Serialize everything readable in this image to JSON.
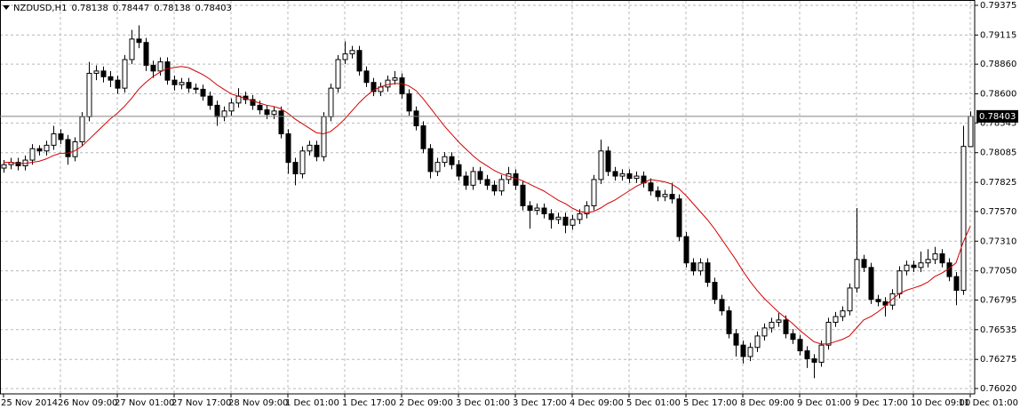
{
  "chart_data": {
    "type": "candlestick",
    "title": "NZDUSD,H1",
    "categories": [
      "25 Nov 2014",
      null,
      null,
      null,
      null,
      null,
      null,
      null,
      "26 Nov 09:00",
      null,
      null,
      null,
      null,
      null,
      null,
      null,
      "27 Nov 01:00",
      null,
      null,
      null,
      null,
      null,
      null,
      null,
      "27 Nov 17:00",
      null,
      null,
      null,
      null,
      null,
      null,
      null,
      "28 Nov 09:00",
      null,
      null,
      null,
      null,
      null,
      null,
      null,
      "1 Dec 01:00",
      null,
      null,
      null,
      null,
      null,
      null,
      null,
      "1 Dec 17:00",
      null,
      null,
      null,
      null,
      null,
      null,
      null,
      "2 Dec 09:00",
      null,
      null,
      null,
      null,
      null,
      null,
      null,
      "3 Dec 01:00",
      null,
      null,
      null,
      null,
      null,
      null,
      null,
      "3 Dec 17:00",
      null,
      null,
      null,
      null,
      null,
      null,
      null,
      "4 Dec 09:00",
      null,
      null,
      null,
      null,
      null,
      null,
      null,
      "5 Dec 01:00",
      null,
      null,
      null,
      null,
      null,
      null,
      null,
      "5 Dec 17:00",
      null,
      null,
      null,
      null,
      null,
      null,
      null,
      "8 Dec 09:00",
      null,
      null,
      null,
      null,
      null,
      null,
      null,
      "9 Dec 01:00",
      null,
      null,
      null,
      null,
      null,
      null,
      null,
      "9 Dec 17:00",
      null,
      null,
      null,
      null,
      null,
      null,
      null,
      "10 Dec 09:00",
      null,
      null,
      null,
      null,
      null,
      null,
      null,
      "11 Dec 01:00"
    ],
    "open": [
      0.7795,
      0.7798,
      0.78,
      0.7797,
      0.7802,
      0.7812,
      0.781,
      0.7815,
      0.7825,
      0.782,
      0.7805,
      0.7818,
      0.784,
      0.7878,
      0.788,
      0.7875,
      0.7872,
      0.7865,
      0.789,
      0.7908,
      0.7905,
      0.7885,
      0.788,
      0.7888,
      0.7872,
      0.7868,
      0.787,
      0.7865,
      0.7864,
      0.7858,
      0.785,
      0.784,
      0.7845,
      0.7852,
      0.7858,
      0.7855,
      0.785,
      0.7846,
      0.7842,
      0.7845,
      0.7825,
      0.78,
      0.779,
      0.781,
      0.7815,
      0.7805,
      0.784,
      0.7865,
      0.789,
      0.7895,
      0.7898,
      0.788,
      0.787,
      0.7862,
      0.7866,
      0.7872,
      0.7874,
      0.786,
      0.7845,
      0.7832,
      0.7812,
      0.7792,
      0.78,
      0.7805,
      0.7798,
      0.7788,
      0.778,
      0.7792,
      0.7785,
      0.778,
      0.7775,
      0.7785,
      0.779,
      0.778,
      0.7762,
      0.7758,
      0.776,
      0.7755,
      0.775,
      0.7752,
      0.7745,
      0.775,
      0.7755,
      0.7762,
      0.7785,
      0.781,
      0.7792,
      0.7788,
      0.779,
      0.7786,
      0.7788,
      0.7782,
      0.7775,
      0.777,
      0.7772,
      0.7768,
      0.7735,
      0.7712,
      0.7705,
      0.7712,
      0.7695,
      0.768,
      0.767,
      0.765,
      0.764,
      0.763,
      0.7638,
      0.7648,
      0.7655,
      0.766,
      0.7662,
      0.765,
      0.7645,
      0.7635,
      0.7628,
      0.7625,
      0.764,
      0.766,
      0.7665,
      0.767,
      0.769,
      0.7715,
      0.7708,
      0.768,
      0.7678,
      0.7675,
      0.7685,
      0.7705,
      0.771,
      0.7708,
      0.7712,
      0.7715,
      0.772,
      0.7712,
      0.77,
      0.7688,
      0.78138
    ],
    "high": [
      0.7802,
      0.7804,
      0.7804,
      0.7806,
      0.7816,
      0.7815,
      0.7819,
      0.7832,
      0.7829,
      0.7824,
      0.7822,
      0.7844,
      0.7888,
      0.7885,
      0.7884,
      0.788,
      0.7876,
      0.7894,
      0.7916,
      0.792,
      0.7909,
      0.7889,
      0.7892,
      0.7892,
      0.7876,
      0.7874,
      0.7874,
      0.7869,
      0.7868,
      0.7862,
      0.7854,
      0.7849,
      0.7856,
      0.7865,
      0.7862,
      0.7859,
      0.7854,
      0.785,
      0.7849,
      0.7849,
      0.7829,
      0.7804,
      0.7814,
      0.7819,
      0.7819,
      0.7844,
      0.7869,
      0.7894,
      0.7906,
      0.7902,
      0.7902,
      0.7884,
      0.7874,
      0.787,
      0.7876,
      0.788,
      0.7878,
      0.7864,
      0.7849,
      0.7836,
      0.7816,
      0.7804,
      0.7809,
      0.7809,
      0.7802,
      0.7792,
      0.7796,
      0.7796,
      0.7789,
      0.7784,
      0.7789,
      0.7796,
      0.7794,
      0.7784,
      0.7766,
      0.7764,
      0.7764,
      0.7759,
      0.7756,
      0.7756,
      0.7754,
      0.7759,
      0.7766,
      0.7789,
      0.782,
      0.7814,
      0.7796,
      0.7794,
      0.7794,
      0.7792,
      0.7792,
      0.7786,
      0.7779,
      0.7776,
      0.7782,
      0.7772,
      0.7739,
      0.7716,
      0.7716,
      0.7716,
      0.7699,
      0.7684,
      0.7674,
      0.7654,
      0.7644,
      0.7642,
      0.7652,
      0.7659,
      0.7664,
      0.7668,
      0.7666,
      0.7654,
      0.7649,
      0.7639,
      0.7632,
      0.7644,
      0.7664,
      0.7669,
      0.7674,
      0.7694,
      0.776,
      0.7719,
      0.7712,
      0.7684,
      0.7682,
      0.7689,
      0.7709,
      0.7714,
      0.7714,
      0.7722,
      0.7724,
      0.7726,
      0.7724,
      0.7716,
      0.7704,
      0.7832,
      0.78447
    ],
    "low": [
      0.7791,
      0.7794,
      0.7793,
      0.7793,
      0.7798,
      0.7806,
      0.7806,
      0.7811,
      0.7816,
      0.7798,
      0.7801,
      0.7814,
      0.7836,
      0.7872,
      0.787,
      0.7866,
      0.786,
      0.7861,
      0.7886,
      0.79,
      0.788,
      0.7874,
      0.7876,
      0.7868,
      0.7863,
      0.7864,
      0.7861,
      0.786,
      0.7854,
      0.7846,
      0.7832,
      0.7836,
      0.7841,
      0.7848,
      0.7851,
      0.7846,
      0.7842,
      0.7838,
      0.7838,
      0.7821,
      0.779,
      0.778,
      0.7786,
      0.7806,
      0.7801,
      0.7801,
      0.7836,
      0.7861,
      0.7886,
      0.7891,
      0.7876,
      0.7866,
      0.7858,
      0.7858,
      0.7862,
      0.7868,
      0.7856,
      0.7841,
      0.7828,
      0.7808,
      0.7786,
      0.7788,
      0.7796,
      0.7794,
      0.7784,
      0.7776,
      0.7776,
      0.7781,
      0.7776,
      0.7771,
      0.7771,
      0.7781,
      0.7776,
      0.7758,
      0.7742,
      0.7754,
      0.7751,
      0.7742,
      0.7746,
      0.7738,
      0.7741,
      0.7746,
      0.7751,
      0.7758,
      0.7781,
      0.7788,
      0.7784,
      0.7784,
      0.7782,
      0.7782,
      0.7778,
      0.7771,
      0.7766,
      0.7766,
      0.7764,
      0.7731,
      0.7708,
      0.7701,
      0.7701,
      0.7691,
      0.7676,
      0.7666,
      0.7646,
      0.763,
      0.7624,
      0.7626,
      0.7634,
      0.7644,
      0.7651,
      0.7656,
      0.7646,
      0.7641,
      0.7631,
      0.762,
      0.7611,
      0.7621,
      0.7636,
      0.7656,
      0.7661,
      0.7666,
      0.7686,
      0.7704,
      0.7676,
      0.7674,
      0.7665,
      0.7671,
      0.7681,
      0.7701,
      0.7704,
      0.7704,
      0.7708,
      0.7711,
      0.7708,
      0.7696,
      0.7675,
      0.7684,
      0.78138
    ],
    "close": [
      0.7798,
      0.78,
      0.7797,
      0.7802,
      0.7812,
      0.781,
      0.7815,
      0.7825,
      0.782,
      0.7805,
      0.7818,
      0.784,
      0.7878,
      0.788,
      0.7875,
      0.7872,
      0.7865,
      0.789,
      0.7908,
      0.7905,
      0.7885,
      0.788,
      0.7888,
      0.7872,
      0.7868,
      0.787,
      0.7865,
      0.7864,
      0.7858,
      0.785,
      0.784,
      0.7845,
      0.7852,
      0.7858,
      0.7855,
      0.785,
      0.7846,
      0.7842,
      0.7845,
      0.7825,
      0.78,
      0.779,
      0.781,
      0.7815,
      0.7805,
      0.784,
      0.7865,
      0.789,
      0.7895,
      0.7898,
      0.788,
      0.787,
      0.7862,
      0.7866,
      0.7872,
      0.7874,
      0.786,
      0.7845,
      0.7832,
      0.7812,
      0.7792,
      0.78,
      0.7805,
      0.7798,
      0.7788,
      0.778,
      0.7792,
      0.7785,
      0.778,
      0.7775,
      0.7785,
      0.779,
      0.778,
      0.7762,
      0.7758,
      0.776,
      0.7755,
      0.775,
      0.7752,
      0.7745,
      0.775,
      0.7755,
      0.7762,
      0.7785,
      0.781,
      0.7792,
      0.7788,
      0.779,
      0.7786,
      0.7788,
      0.7782,
      0.7775,
      0.777,
      0.7772,
      0.7768,
      0.7735,
      0.7712,
      0.7705,
      0.7712,
      0.7695,
      0.768,
      0.767,
      0.765,
      0.764,
      0.763,
      0.7638,
      0.7648,
      0.7655,
      0.766,
      0.7662,
      0.765,
      0.7645,
      0.7635,
      0.7628,
      0.7625,
      0.764,
      0.766,
      0.7665,
      0.767,
      0.769,
      0.7715,
      0.7708,
      0.768,
      0.7678,
      0.7675,
      0.7685,
      0.7705,
      0.771,
      0.7708,
      0.7712,
      0.7715,
      0.772,
      0.7712,
      0.77,
      0.7688,
      0.7814,
      0.78403
    ],
    "overlay": {
      "color": "#d40000",
      "values": [
        0.78,
        0.78,
        0.7799,
        0.7799,
        0.78,
        0.7801,
        0.7803,
        0.7806,
        0.7808,
        0.7808,
        0.781,
        0.7814,
        0.782,
        0.7826,
        0.7832,
        0.7838,
        0.7843,
        0.7849,
        0.7856,
        0.7864,
        0.787,
        0.7875,
        0.7879,
        0.7882,
        0.7883,
        0.7884,
        0.7883,
        0.788,
        0.7877,
        0.7873,
        0.7868,
        0.7864,
        0.786,
        0.7858,
        0.7856,
        0.7854,
        0.7852,
        0.785,
        0.7849,
        0.7847,
        0.7843,
        0.7838,
        0.7834,
        0.783,
        0.7826,
        0.7825,
        0.7827,
        0.7832,
        0.7838,
        0.7845,
        0.7852,
        0.7858,
        0.7863,
        0.7866,
        0.7868,
        0.7869,
        0.7869,
        0.7867,
        0.7863,
        0.7856,
        0.7848,
        0.784,
        0.7832,
        0.7825,
        0.7818,
        0.7812,
        0.7806,
        0.7801,
        0.7797,
        0.7793,
        0.779,
        0.7788,
        0.7786,
        0.7784,
        0.7781,
        0.7778,
        0.7775,
        0.7771,
        0.7767,
        0.7764,
        0.776,
        0.7757,
        0.7756,
        0.7757,
        0.776,
        0.7764,
        0.7767,
        0.7771,
        0.7775,
        0.7779,
        0.7782,
        0.7785,
        0.7784,
        0.7783,
        0.7781,
        0.7777,
        0.7771,
        0.7764,
        0.7757,
        0.775,
        0.7742,
        0.7733,
        0.7724,
        0.7715,
        0.7705,
        0.7696,
        0.7688,
        0.7681,
        0.7675,
        0.7669,
        0.7664,
        0.7659,
        0.7653,
        0.7648,
        0.7643,
        0.7641,
        0.7641,
        0.7643,
        0.7645,
        0.7648,
        0.7655,
        0.7662,
        0.7665,
        0.7669,
        0.7674,
        0.768,
        0.7685,
        0.7688,
        0.769,
        0.7692,
        0.7695,
        0.77,
        0.7703,
        0.7707,
        0.7712,
        0.773,
        0.7744
      ]
    },
    "up_color": "#ffffff",
    "down_color": "#000000",
    "outline_color": "#000000",
    "ylim": [
      0.75973,
      0.79414
    ],
    "yticks": [
      0.79375,
      0.79115,
      {
        "value": 0.7886,
        "label": "0.78860"
      },
      {
        "value": 0.786,
        "label": "0.78600"
      },
      0.78345,
      0.78085,
      0.77825,
      {
        "value": 0.7757,
        "label": "0.77570"
      },
      {
        "value": 0.7731,
        "label": "0.77310"
      },
      {
        "value": 0.7705,
        "label": "0.77050"
      },
      0.76795,
      0.76535,
      0.76275,
      {
        "value": 0.7602,
        "label": "0.76020"
      }
    ],
    "grid": true
  }
}
